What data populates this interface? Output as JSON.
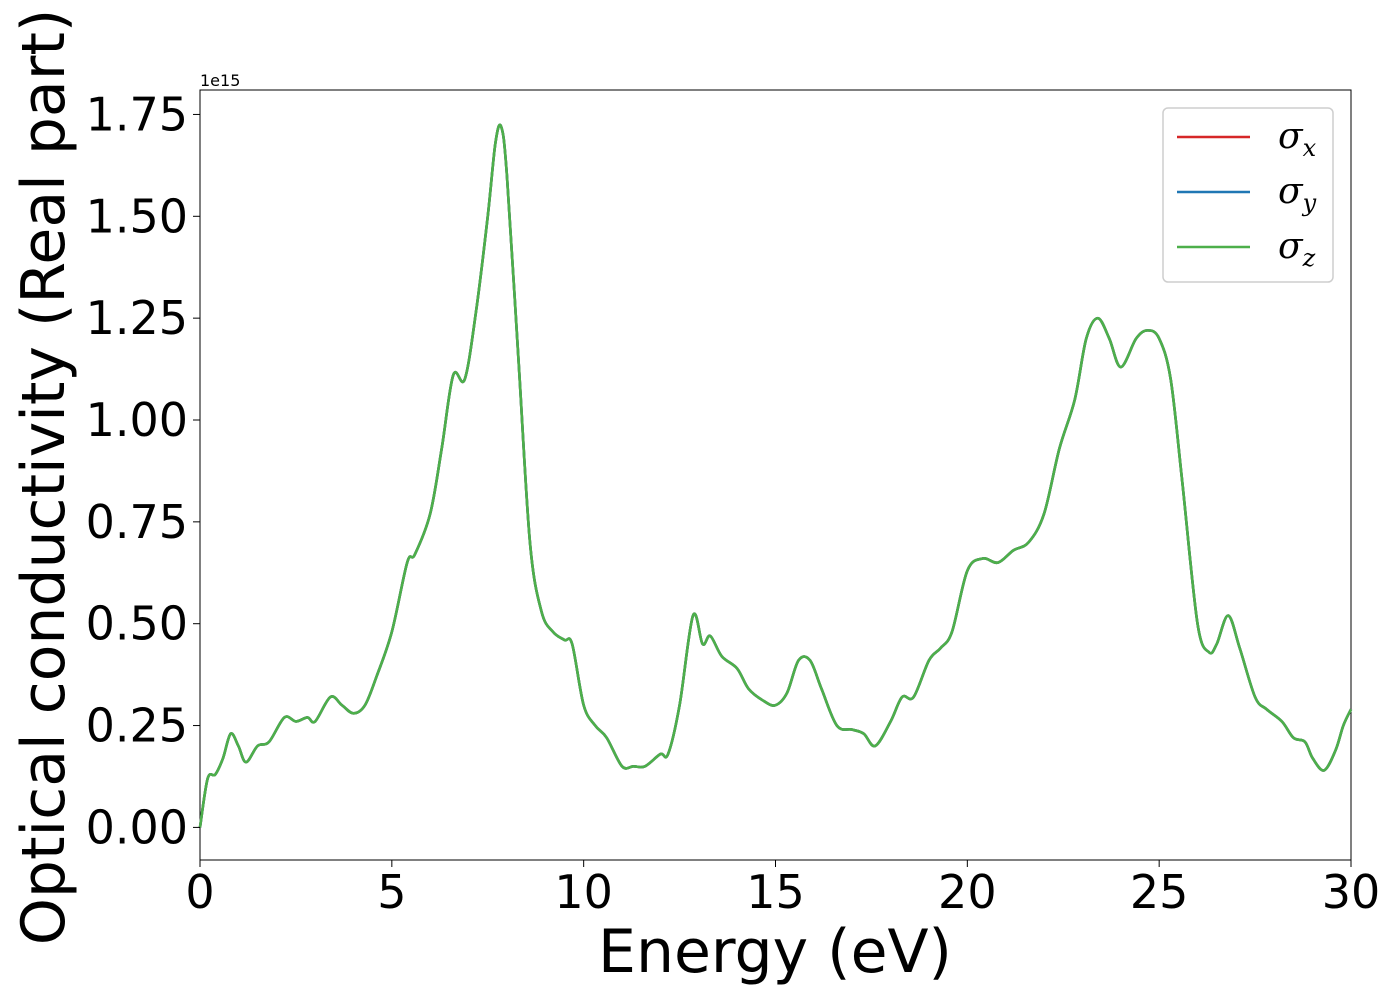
{
  "chart_data": {
    "type": "line",
    "title": "",
    "xlabel": "Energy (eV)",
    "ylabel": "Optical conductivity (Real part)",
    "y_offset_label": "1e15",
    "y_scale": 1000000000000000.0,
    "xlim": [
      0,
      30
    ],
    "ylim": [
      -0.08,
      1.81
    ],
    "x_ticks": [
      0,
      5,
      10,
      15,
      20,
      25,
      30
    ],
    "x_tick_labels": [
      "0",
      "5",
      "10",
      "15",
      "20",
      "25",
      "30"
    ],
    "y_ticks": [
      0.0,
      0.25,
      0.5,
      0.75,
      1.0,
      1.25,
      1.5,
      1.75
    ],
    "y_tick_labels": [
      "0.00",
      "0.25",
      "0.50",
      "0.75",
      "1.00",
      "1.25",
      "1.50",
      "1.75"
    ],
    "grid": false,
    "legend_position": "top-right",
    "x": [
      0.0,
      0.2,
      0.4,
      0.6,
      0.8,
      1.0,
      1.2,
      1.5,
      1.8,
      2.2,
      2.5,
      2.8,
      3.0,
      3.4,
      3.7,
      4.0,
      4.3,
      4.6,
      5.0,
      5.4,
      5.6,
      6.0,
      6.3,
      6.6,
      6.9,
      7.2,
      7.5,
      7.7,
      7.85,
      8.0,
      8.3,
      8.6,
      8.9,
      9.2,
      9.5,
      9.7,
      10.0,
      10.3,
      10.6,
      11.0,
      11.3,
      11.6,
      12.0,
      12.2,
      12.5,
      12.85,
      13.1,
      13.3,
      13.6,
      14.0,
      14.3,
      14.7,
      15.0,
      15.3,
      15.6,
      15.9,
      16.2,
      16.6,
      17.0,
      17.3,
      17.6,
      18.0,
      18.3,
      18.6,
      19.0,
      19.3,
      19.6,
      20.0,
      20.4,
      20.8,
      21.2,
      21.6,
      22.0,
      22.4,
      22.8,
      23.1,
      23.4,
      23.7,
      24.0,
      24.4,
      24.7,
      25.0,
      25.3,
      25.6,
      26.0,
      26.3,
      26.5,
      26.8,
      27.1,
      27.5,
      27.8,
      28.2,
      28.5,
      28.8,
      29.0,
      29.3,
      29.6,
      29.8,
      30.0
    ],
    "series": [
      {
        "name": "σx",
        "color": "#d62728",
        "values": [
          0.0,
          0.12,
          0.13,
          0.17,
          0.23,
          0.2,
          0.16,
          0.2,
          0.21,
          0.27,
          0.26,
          0.27,
          0.26,
          0.32,
          0.3,
          0.28,
          0.3,
          0.37,
          0.48,
          0.65,
          0.67,
          0.77,
          0.93,
          1.11,
          1.1,
          1.27,
          1.5,
          1.68,
          1.72,
          1.6,
          1.15,
          0.7,
          0.53,
          0.48,
          0.46,
          0.45,
          0.3,
          0.25,
          0.22,
          0.15,
          0.15,
          0.15,
          0.18,
          0.18,
          0.3,
          0.52,
          0.45,
          0.47,
          0.42,
          0.39,
          0.34,
          0.31,
          0.3,
          0.33,
          0.41,
          0.41,
          0.34,
          0.25,
          0.24,
          0.23,
          0.2,
          0.26,
          0.32,
          0.32,
          0.41,
          0.44,
          0.48,
          0.63,
          0.66,
          0.65,
          0.68,
          0.7,
          0.77,
          0.93,
          1.05,
          1.2,
          1.25,
          1.2,
          1.13,
          1.2,
          1.22,
          1.2,
          1.1,
          0.85,
          0.5,
          0.43,
          0.45,
          0.52,
          0.44,
          0.32,
          0.29,
          0.26,
          0.22,
          0.21,
          0.17,
          0.14,
          0.19,
          0.25,
          0.29
        ]
      },
      {
        "name": "σy",
        "color": "#1f77b4",
        "values": [
          0.0,
          0.12,
          0.13,
          0.17,
          0.23,
          0.2,
          0.16,
          0.2,
          0.21,
          0.27,
          0.26,
          0.27,
          0.26,
          0.32,
          0.3,
          0.28,
          0.3,
          0.37,
          0.48,
          0.65,
          0.67,
          0.77,
          0.93,
          1.11,
          1.1,
          1.27,
          1.5,
          1.68,
          1.72,
          1.6,
          1.15,
          0.7,
          0.53,
          0.48,
          0.46,
          0.45,
          0.3,
          0.25,
          0.22,
          0.15,
          0.15,
          0.15,
          0.18,
          0.18,
          0.3,
          0.52,
          0.45,
          0.47,
          0.42,
          0.39,
          0.34,
          0.31,
          0.3,
          0.33,
          0.41,
          0.41,
          0.34,
          0.25,
          0.24,
          0.23,
          0.2,
          0.26,
          0.32,
          0.32,
          0.41,
          0.44,
          0.48,
          0.63,
          0.66,
          0.65,
          0.68,
          0.7,
          0.77,
          0.93,
          1.05,
          1.2,
          1.25,
          1.2,
          1.13,
          1.2,
          1.22,
          1.2,
          1.1,
          0.85,
          0.5,
          0.43,
          0.45,
          0.52,
          0.44,
          0.32,
          0.29,
          0.26,
          0.22,
          0.21,
          0.17,
          0.14,
          0.19,
          0.25,
          0.29
        ]
      },
      {
        "name": "σz",
        "color": "#4daf4a",
        "values": [
          0.0,
          0.12,
          0.13,
          0.17,
          0.23,
          0.2,
          0.16,
          0.2,
          0.21,
          0.27,
          0.26,
          0.27,
          0.26,
          0.32,
          0.3,
          0.28,
          0.3,
          0.37,
          0.48,
          0.65,
          0.67,
          0.77,
          0.93,
          1.11,
          1.1,
          1.27,
          1.5,
          1.68,
          1.72,
          1.6,
          1.15,
          0.7,
          0.53,
          0.48,
          0.46,
          0.45,
          0.3,
          0.25,
          0.22,
          0.15,
          0.15,
          0.15,
          0.18,
          0.18,
          0.3,
          0.52,
          0.45,
          0.47,
          0.42,
          0.39,
          0.34,
          0.31,
          0.3,
          0.33,
          0.41,
          0.41,
          0.34,
          0.25,
          0.24,
          0.23,
          0.2,
          0.26,
          0.32,
          0.32,
          0.41,
          0.44,
          0.48,
          0.63,
          0.66,
          0.65,
          0.68,
          0.7,
          0.77,
          0.93,
          1.05,
          1.2,
          1.25,
          1.2,
          1.13,
          1.2,
          1.22,
          1.2,
          1.1,
          0.85,
          0.5,
          0.43,
          0.45,
          0.52,
          0.44,
          0.32,
          0.29,
          0.26,
          0.22,
          0.21,
          0.17,
          0.14,
          0.19,
          0.25,
          0.29
        ]
      }
    ],
    "legend": [
      {
        "symbol": "σ",
        "sub": "x",
        "color": "#d62728"
      },
      {
        "symbol": "σ",
        "sub": "y",
        "color": "#1f77b4"
      },
      {
        "symbol": "σ",
        "sub": "z",
        "color": "#4daf4a"
      }
    ]
  }
}
